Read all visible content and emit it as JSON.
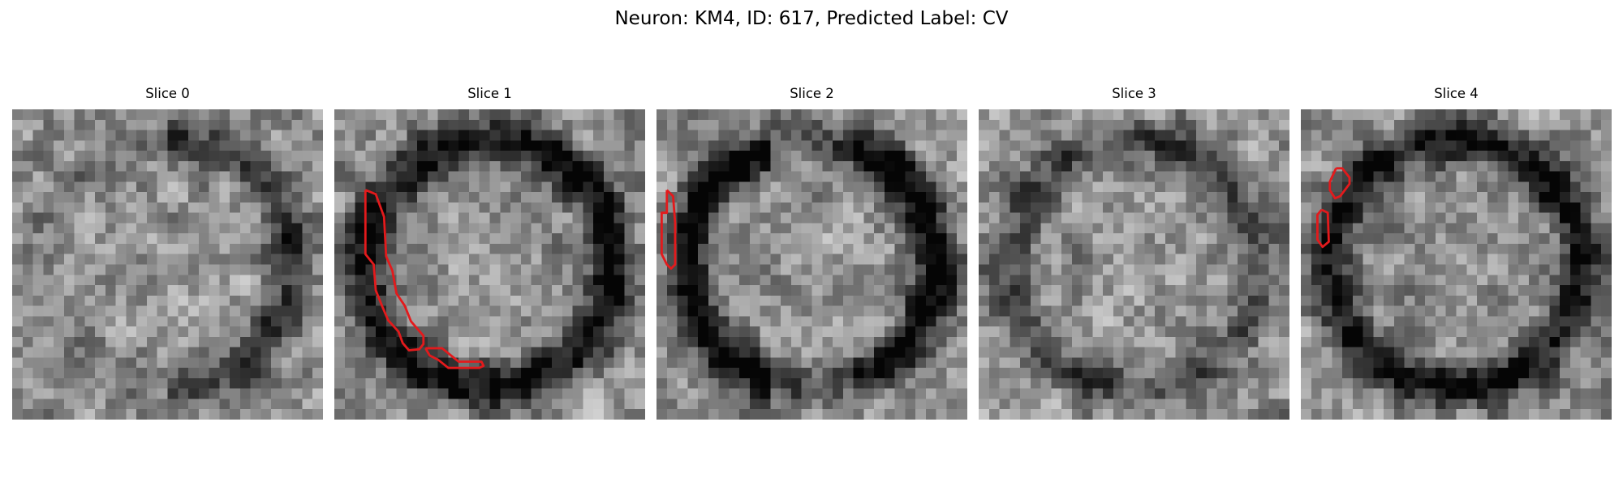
{
  "figure": {
    "title": "Neuron: KM4, ID: 617, Predicted Label: CV",
    "grid_size": 30,
    "contour_color": "#e31a1c",
    "colormap": "gray"
  },
  "panels": [
    {
      "title": "Slice 0",
      "seed": 11,
      "ring_strength": 0.35,
      "ring_side": "right",
      "contours": []
    },
    {
      "title": "Slice 1",
      "seed": 23,
      "ring_strength": 0.55,
      "ring_side": "full",
      "contours": [
        [
          [
            3,
            7.8
          ],
          [
            4,
            8.2
          ],
          [
            4.8,
            10.4
          ],
          [
            5,
            14.2
          ],
          [
            5.6,
            15.6
          ],
          [
            6,
            17.8
          ],
          [
            6.8,
            19
          ],
          [
            7.4,
            20.5
          ],
          [
            8.6,
            21.9
          ],
          [
            8.6,
            22.7
          ],
          [
            8.2,
            23.2
          ],
          [
            7.2,
            23.3
          ],
          [
            6.6,
            22.6
          ],
          [
            6.2,
            21.5
          ],
          [
            5.2,
            20.4
          ],
          [
            4.6,
            19
          ],
          [
            4,
            17.5
          ],
          [
            3.8,
            15
          ],
          [
            3,
            14
          ],
          [
            3,
            7.8
          ]
        ],
        [
          [
            8.8,
            23.1
          ],
          [
            10.4,
            23.1
          ],
          [
            12,
            24.4
          ],
          [
            14.2,
            24.4
          ],
          [
            14.4,
            24.8
          ],
          [
            14,
            25
          ],
          [
            11,
            25
          ],
          [
            10,
            24.2
          ],
          [
            9.2,
            23.8
          ],
          [
            8.8,
            23.1
          ]
        ]
      ]
    },
    {
      "title": "Slice 2",
      "seed": 37,
      "ring_strength": 0.6,
      "ring_side": "left-right",
      "contours": [
        [
          [
            1,
            7.8
          ],
          [
            1.6,
            8.4
          ],
          [
            1.8,
            11
          ],
          [
            1.8,
            15
          ],
          [
            1.4,
            15.4
          ],
          [
            1,
            15
          ],
          [
            0.5,
            14
          ],
          [
            0.5,
            10
          ],
          [
            1,
            10
          ],
          [
            1,
            7.8
          ]
        ]
      ]
    },
    {
      "title": "Slice 3",
      "seed": 41,
      "ring_strength": 0.28,
      "ring_side": "full",
      "contours": []
    },
    {
      "title": "Slice 4",
      "seed": 59,
      "ring_strength": 0.5,
      "ring_side": "full",
      "contours": [
        [
          [
            3.4,
            5.7
          ],
          [
            4,
            5.7
          ],
          [
            4.7,
            6.6
          ],
          [
            4.7,
            7.2
          ],
          [
            3.8,
            8.4
          ],
          [
            3.3,
            8.6
          ],
          [
            2.8,
            7.8
          ],
          [
            2.8,
            7
          ],
          [
            3.4,
            5.7
          ]
        ],
        [
          [
            2,
            9.7
          ],
          [
            2.6,
            10
          ],
          [
            2.7,
            12.8
          ],
          [
            2.1,
            13.3
          ],
          [
            1.6,
            12.6
          ],
          [
            1.6,
            10.2
          ],
          [
            2,
            9.7
          ]
        ]
      ]
    }
  ]
}
